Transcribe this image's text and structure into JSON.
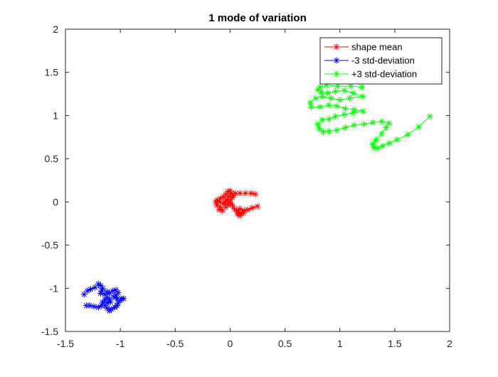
{
  "chart_data": {
    "type": "line",
    "title": "1 mode of variation",
    "xlabel": "",
    "ylabel": "",
    "xlim": [
      -1.5,
      2
    ],
    "ylim": [
      -1.5,
      2
    ],
    "x_ticks": [
      -1.5,
      -1,
      -0.5,
      0,
      0.5,
      1,
      1.5,
      2
    ],
    "y_ticks": [
      -1.5,
      -1,
      -0.5,
      0,
      0.5,
      1,
      1.5,
      2
    ],
    "x_tick_labels": [
      "-1.5",
      "-1",
      "-0.5",
      "0",
      "0.5",
      "1",
      "1.5",
      "2"
    ],
    "y_tick_labels": [
      "-1.5",
      "-1",
      "-0.5",
      "0",
      "0.5",
      "1",
      "1.5",
      "2"
    ],
    "grid": false,
    "legend_position": "top-right",
    "marker": "asterisk",
    "series": [
      {
        "name": "shape mean",
        "color": "#ff0000",
        "points": [
          [
            0.25,
            -0.05
          ],
          [
            0.2,
            -0.07
          ],
          [
            0.16,
            -0.09
          ],
          [
            0.12,
            -0.13
          ],
          [
            0.09,
            -0.16
          ],
          [
            0.07,
            -0.14
          ],
          [
            0.06,
            -0.1
          ],
          [
            0.09,
            -0.08
          ],
          [
            0.13,
            -0.1
          ],
          [
            0.1,
            -0.13
          ],
          [
            0.07,
            -0.12
          ],
          [
            0.04,
            -0.08
          ],
          [
            0.02,
            -0.04
          ],
          [
            0.0,
            -0.02
          ],
          [
            -0.02,
            0.01
          ],
          [
            -0.06,
            -0.02
          ],
          [
            -0.09,
            -0.06
          ],
          [
            -0.1,
            -0.09
          ],
          [
            -0.07,
            -0.1
          ],
          [
            -0.04,
            -0.06
          ],
          [
            -0.02,
            -0.03
          ],
          [
            -0.05,
            0.0
          ],
          [
            -0.09,
            0.0
          ],
          [
            -0.12,
            0.02
          ],
          [
            -0.13,
            0.0
          ],
          [
            -0.12,
            -0.04
          ],
          [
            -0.09,
            0.04
          ],
          [
            -0.06,
            0.06
          ],
          [
            -0.04,
            0.09
          ],
          [
            -0.02,
            0.12
          ],
          [
            0.0,
            0.13
          ],
          [
            0.01,
            0.1
          ],
          [
            -0.01,
            0.06
          ],
          [
            -0.03,
            0.03
          ],
          [
            0.0,
            0.0
          ],
          [
            0.02,
            0.05
          ],
          [
            0.03,
            0.08
          ],
          [
            0.05,
            0.1
          ],
          [
            0.09,
            0.1
          ],
          [
            0.14,
            0.1
          ],
          [
            0.19,
            0.1
          ],
          [
            0.23,
            0.09
          ]
        ]
      },
      {
        "name": "-3 std-deviation",
        "color": "#0000ff",
        "points": [
          [
            -1.33,
            -1.07
          ],
          [
            -1.3,
            -1.03
          ],
          [
            -1.27,
            -1.01
          ],
          [
            -1.23,
            -0.99
          ],
          [
            -1.2,
            -0.95
          ],
          [
            -1.18,
            -0.97
          ],
          [
            -1.16,
            -1.0
          ],
          [
            -1.17,
            -1.03
          ],
          [
            -1.18,
            -1.06
          ],
          [
            -1.14,
            -1.07
          ],
          [
            -1.12,
            -1.04
          ],
          [
            -1.1,
            -1.06
          ],
          [
            -1.07,
            -1.03
          ],
          [
            -1.04,
            -1.02
          ],
          [
            -1.02,
            -1.05
          ],
          [
            -1.04,
            -1.08
          ],
          [
            -1.06,
            -1.1
          ],
          [
            -1.03,
            -1.12
          ],
          [
            -0.99,
            -1.12
          ],
          [
            -0.97,
            -1.12
          ],
          [
            -1.0,
            -1.14
          ],
          [
            -1.02,
            -1.17
          ],
          [
            -1.03,
            -1.2
          ],
          [
            -1.05,
            -1.22
          ],
          [
            -1.08,
            -1.24
          ],
          [
            -1.1,
            -1.26
          ],
          [
            -1.12,
            -1.23
          ],
          [
            -1.14,
            -1.2
          ],
          [
            -1.12,
            -1.17
          ],
          [
            -1.09,
            -1.16
          ],
          [
            -1.1,
            -1.13
          ],
          [
            -1.12,
            -1.11
          ],
          [
            -1.14,
            -1.13
          ],
          [
            -1.16,
            -1.16
          ],
          [
            -1.17,
            -1.2
          ],
          [
            -1.2,
            -1.22
          ],
          [
            -1.24,
            -1.21
          ],
          [
            -1.28,
            -1.2
          ],
          [
            -1.31,
            -1.2
          ]
        ]
      },
      {
        "name": "+3 std-deviation",
        "color": "#00ff00",
        "points": [
          [
            1.82,
            0.99
          ],
          [
            1.72,
            0.87
          ],
          [
            1.62,
            0.78
          ],
          [
            1.52,
            0.72
          ],
          [
            1.45,
            0.68
          ],
          [
            1.39,
            0.65
          ],
          [
            1.34,
            0.62
          ],
          [
            1.31,
            0.63
          ],
          [
            1.3,
            0.67
          ],
          [
            1.33,
            0.72
          ],
          [
            1.38,
            0.79
          ],
          [
            1.42,
            0.86
          ],
          [
            1.45,
            0.91
          ],
          [
            1.38,
            0.93
          ],
          [
            1.3,
            0.92
          ],
          [
            1.22,
            0.9
          ],
          [
            1.13,
            0.89
          ],
          [
            1.05,
            0.86
          ],
          [
            0.97,
            0.83
          ],
          [
            0.9,
            0.82
          ],
          [
            0.85,
            0.81
          ],
          [
            0.81,
            0.85
          ],
          [
            0.8,
            0.9
          ],
          [
            0.84,
            0.95
          ],
          [
            0.9,
            0.96
          ],
          [
            0.96,
            0.99
          ],
          [
            1.04,
            1.01
          ],
          [
            1.12,
            1.03
          ],
          [
            1.21,
            1.05
          ],
          [
            1.13,
            1.07
          ],
          [
            1.05,
            1.08
          ],
          [
            0.97,
            1.11
          ],
          [
            0.9,
            1.12
          ],
          [
            0.82,
            1.1
          ],
          [
            0.74,
            1.1
          ],
          [
            0.73,
            1.15
          ],
          [
            0.78,
            1.2
          ],
          [
            0.84,
            1.22
          ],
          [
            0.92,
            1.2
          ],
          [
            1.0,
            1.18
          ],
          [
            1.09,
            1.2
          ],
          [
            1.21,
            1.22
          ],
          [
            1.12,
            1.26
          ],
          [
            1.04,
            1.29
          ],
          [
            0.96,
            1.28
          ],
          [
            0.89,
            1.26
          ],
          [
            0.83,
            1.27
          ],
          [
            0.8,
            1.3
          ],
          [
            0.82,
            1.33
          ],
          [
            0.88,
            1.35
          ],
          [
            0.98,
            1.34
          ],
          [
            1.1,
            1.34
          ],
          [
            1.2,
            1.33
          ]
        ]
      }
    ]
  }
}
